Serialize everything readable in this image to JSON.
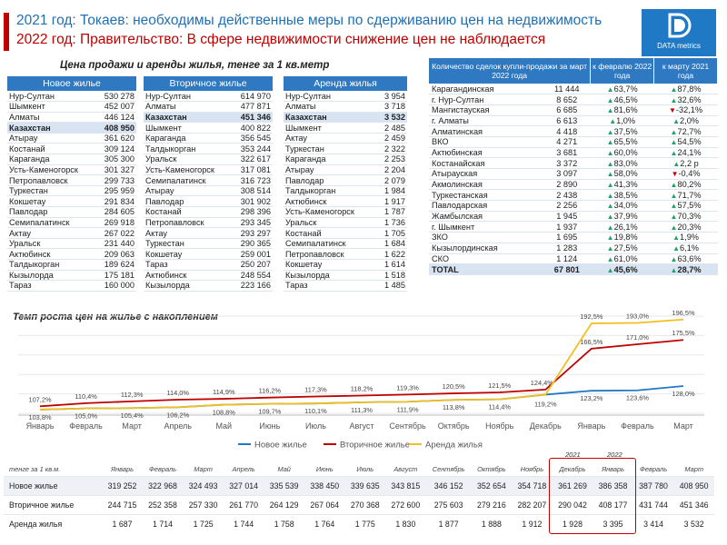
{
  "header": {
    "line1": "2021 год: Токаев: необходимы действенные меры по сдерживанию цен на недвижимость",
    "line2": "2022 год: Правительство: В сфере недвижимости снижение цен не наблюдается"
  },
  "logo": {
    "letter": "D",
    "text": "DATA metrics",
    "color": "#1f79c4"
  },
  "price_tables": {
    "title": "Цена продажи и аренды жилья,  тенге за 1 кв.метр",
    "new": {
      "header": "Новое жилье",
      "rows": [
        {
          "name": "Нур-Султан",
          "value": "530 278"
        },
        {
          "name": "Шымкент",
          "value": "452 007"
        },
        {
          "name": "Алматы",
          "value": "446 124"
        },
        {
          "name": "Казахстан",
          "value": "408 950",
          "highlight": true
        },
        {
          "name": "Атырау",
          "value": "361 620"
        },
        {
          "name": "Костанай",
          "value": "309 124"
        },
        {
          "name": "Караганда",
          "value": "305 300"
        },
        {
          "name": "Усть-Каменогорск",
          "value": "301 327"
        },
        {
          "name": "Петропавловск",
          "value": "299 733"
        },
        {
          "name": "Туркестан",
          "value": "295 959"
        },
        {
          "name": "Кокшетау",
          "value": "291 834"
        },
        {
          "name": "Павлодар",
          "value": "284 605"
        },
        {
          "name": "Семипалатинск",
          "value": "269 918"
        },
        {
          "name": "Актау",
          "value": "267 022"
        },
        {
          "name": "Уральск",
          "value": "231 440"
        },
        {
          "name": "Актюбинск",
          "value": "209 063"
        },
        {
          "name": "Талдыкорган",
          "value": "189 624"
        },
        {
          "name": "Кызылорда",
          "value": "175 181"
        },
        {
          "name": "Тараз",
          "value": "160 000"
        }
      ]
    },
    "secondary": {
      "header": "Вторичное жилье",
      "rows": [
        {
          "name": "Нур-Султан",
          "value": "614 970"
        },
        {
          "name": "Алматы",
          "value": "477 871"
        },
        {
          "name": "Казахстан",
          "value": "451 346",
          "highlight": true
        },
        {
          "name": "Шымкент",
          "value": "400 822"
        },
        {
          "name": "Караганда",
          "value": "356 545"
        },
        {
          "name": "Талдыкорган",
          "value": "353 244"
        },
        {
          "name": "Уральск",
          "value": "322 617"
        },
        {
          "name": "Усть-Каменогорск",
          "value": "317 081"
        },
        {
          "name": "Семипалатинск",
          "value": "316 723"
        },
        {
          "name": "Атырау",
          "value": "308 514"
        },
        {
          "name": "Павлодар",
          "value": "301 902"
        },
        {
          "name": "Костанай",
          "value": "298 396"
        },
        {
          "name": "Петропавловск",
          "value": "293 345"
        },
        {
          "name": "Актау",
          "value": "293 297"
        },
        {
          "name": "Туркестан",
          "value": "290 365"
        },
        {
          "name": "Кокшетау",
          "value": "259 001"
        },
        {
          "name": "Тараз",
          "value": "250 207"
        },
        {
          "name": "Актюбинск",
          "value": "248 554"
        },
        {
          "name": "Кызылорда",
          "value": "223 166"
        }
      ]
    },
    "rent": {
      "header": "Аренда  жилья",
      "rows": [
        {
          "name": "Нур-Султан",
          "value": "3 954"
        },
        {
          "name": "Алматы",
          "value": "3 718"
        },
        {
          "name": "Казахстан",
          "value": "3 532",
          "highlight": true
        },
        {
          "name": "Шымкент",
          "value": "2 485"
        },
        {
          "name": "Актау",
          "value": "2 459"
        },
        {
          "name": "Туркестан",
          "value": "2 322"
        },
        {
          "name": "Караганда",
          "value": "2 253"
        },
        {
          "name": "Атырау",
          "value": "2 204"
        },
        {
          "name": "Павлодар",
          "value": "2 079"
        },
        {
          "name": "Талдыкорган",
          "value": "1 984"
        },
        {
          "name": "Актюбинск",
          "value": "1 917"
        },
        {
          "name": "Усть-Каменогорск",
          "value": "1 787"
        },
        {
          "name": "Уральск",
          "value": "1 736"
        },
        {
          "name": "Костанай",
          "value": "1 705"
        },
        {
          "name": "Семипалатинск",
          "value": "1 684"
        },
        {
          "name": "Петропавловск",
          "value": "1 622"
        },
        {
          "name": "Кокшетау",
          "value": "1 614"
        },
        {
          "name": "Кызылорда",
          "value": "1 518"
        },
        {
          "name": "Тараз",
          "value": "1 485"
        }
      ]
    }
  },
  "deals_table": {
    "headers": [
      "Количество сделок купли-продажи  за март 2022 года",
      "к февралю 2022 года",
      "к марту 2021 года"
    ],
    "rows": [
      {
        "region": "Карагандинская",
        "count": "11 444",
        "feb": "63,7%",
        "feb_dir": "up",
        "mar": "87,8%",
        "mar_dir": "up"
      },
      {
        "region": "г. Нур-Султан",
        "count": "8 652",
        "feb": "46,5%",
        "feb_dir": "up",
        "mar": "32,6%",
        "mar_dir": "up"
      },
      {
        "region": "Мангистауская",
        "count": "6 685",
        "feb": "81,6%",
        "feb_dir": "up",
        "mar": "-32,1%",
        "mar_dir": "down"
      },
      {
        "region": "г. Алматы",
        "count": "6 613",
        "feb": "1,0%",
        "feb_dir": "up",
        "mar": "2,0%",
        "mar_dir": "up"
      },
      {
        "region": "Алматинская",
        "count": "4 418",
        "feb": "37,5%",
        "feb_dir": "up",
        "mar": "72,7%",
        "mar_dir": "up"
      },
      {
        "region": "ВКО",
        "count": "4 271",
        "feb": "65,5%",
        "feb_dir": "up",
        "mar": "54,5%",
        "mar_dir": "up"
      },
      {
        "region": "Актюбинская",
        "count": "3 681",
        "feb": "60,0%",
        "feb_dir": "up",
        "mar": "24,1%",
        "mar_dir": "up"
      },
      {
        "region": "Костанайская",
        "count": "3 372",
        "feb": "83,0%",
        "feb_dir": "up",
        "mar": "2,2 р",
        "mar_dir": "up"
      },
      {
        "region": "Атырауская",
        "count": "3 097",
        "feb": "58,0%",
        "feb_dir": "up",
        "mar": "-0,4%",
        "mar_dir": "down"
      },
      {
        "region": "Акмолинская",
        "count": "2 890",
        "feb": "41,3%",
        "feb_dir": "up",
        "mar": "80,2%",
        "mar_dir": "up"
      },
      {
        "region": "Туркестанская",
        "count": "2 438",
        "feb": "38,5%",
        "feb_dir": "up",
        "mar": "71,7%",
        "mar_dir": "up"
      },
      {
        "region": "Павлодарская",
        "count": "2 256",
        "feb": "34,0%",
        "feb_dir": "up",
        "mar": "57,5%",
        "mar_dir": "up"
      },
      {
        "region": "Жамбылская",
        "count": "1 945",
        "feb": "37,9%",
        "feb_dir": "up",
        "mar": "70,3%",
        "mar_dir": "up"
      },
      {
        "region": "г. Шымкент",
        "count": "1 937",
        "feb": "26,1%",
        "feb_dir": "up",
        "mar": "20,3%",
        "mar_dir": "up"
      },
      {
        "region": "ЗКО",
        "count": "1 695",
        "feb": "19,8%",
        "feb_dir": "up",
        "mar": "1,9%",
        "mar_dir": "up"
      },
      {
        "region": "Кызылординская",
        "count": "1 283",
        "feb": "27,5%",
        "feb_dir": "up",
        "mar": "6,1%",
        "mar_dir": "up"
      },
      {
        "region": "СКО",
        "count": "1 124",
        "feb": "61,0%",
        "feb_dir": "up",
        "mar": "63,6%",
        "mar_dir": "up"
      },
      {
        "region": "TOTAL",
        "count": "67 801",
        "feb": "45,6%",
        "feb_dir": "up",
        "mar": "28,7%",
        "mar_dir": "up",
        "total": true
      }
    ]
  },
  "chart_data": {
    "type": "line",
    "title": "Темп роста цен на жилье с накоплением",
    "categories": [
      "Январь",
      "Февраль",
      "Март",
      "Апрель",
      "Май",
      "Июнь",
      "Июль",
      "Август",
      "Сентябрь",
      "Октябрь",
      "Ноябрь",
      "Декабрь",
      "Январь",
      "Февраль",
      "Март"
    ],
    "series": [
      {
        "name": "Новое жилье",
        "color": "#1f79c4",
        "values": [
          103.8,
          105.0,
          105.4,
          106.2,
          108.8,
          109.7,
          110.1,
          111.3,
          111.9,
          113.8,
          114.4,
          119.2,
          123.2,
          123.6,
          128.0
        ],
        "labels": [
          "103,8%",
          "105,0%",
          "105,4%",
          "106,2%",
          "108,8%",
          "109,7%",
          "110,1%",
          "111,3%",
          "111,9%",
          "113,8%",
          "114,4%",
          "119,2%",
          "123,2%",
          "123,6%",
          "128,0%"
        ]
      },
      {
        "name": "Вторичное жилье",
        "color": "#c00000",
        "values": [
          107.2,
          110.4,
          112.3,
          114.0,
          114.9,
          116.2,
          117.3,
          118.2,
          119.3,
          120.5,
          121.5,
          124.4,
          166.5,
          171.0,
          175.5
        ],
        "labels": [
          "107,2%",
          "110,4%",
          "112,3%",
          "114,0%",
          "114,9%",
          "116,2%",
          "117,3%",
          "118,2%",
          "119,3%",
          "120,5%",
          "121,5%",
          "124,4%",
          "166,5%",
          "171,0%",
          "175,5%"
        ]
      },
      {
        "name": "Аренда жилья",
        "color": "#f2c01e",
        "values": [
          103.8,
          105.0,
          105.4,
          106.2,
          108.8,
          109.7,
          110.1,
          111.3,
          111.9,
          113.8,
          114.4,
          119.2,
          192.5,
          193.0,
          196.5
        ],
        "labels": [
          "",
          "",
          "",
          "",
          "",
          "",
          "",
          "",
          "",
          "",
          "",
          "",
          "192,5%",
          "193,0%",
          "196,5%"
        ]
      }
    ],
    "ylim": [
      100,
      200
    ],
    "grid": true,
    "legend": "bottom"
  },
  "bottom_table": {
    "unit_label": "тенге за 1 кв.м.",
    "months": [
      "Январь",
      "Февраль",
      "Март",
      "Апрель",
      "Май",
      "Июнь",
      "Июль",
      "Август",
      "Сентябрь",
      "Октябрь",
      "Ноябрь",
      "Декабрь",
      "Январь",
      "Февраль",
      "Март"
    ],
    "year_labels": [
      "2021",
      "2022"
    ],
    "rows": [
      {
        "name": "Новое жилье",
        "values": [
          "319 252",
          "322 968",
          "324 493",
          "327 014",
          "335 539",
          "338 450",
          "339 635",
          "343 815",
          "346 152",
          "352 654",
          "354 718",
          "361 269",
          "386 358",
          "387 780",
          "408 950"
        ]
      },
      {
        "name": "Вторичное жилье",
        "values": [
          "244 715",
          "252 358",
          "257 330",
          "261 770",
          "264 129",
          "267 064",
          "270 368",
          "272 600",
          "275 603",
          "279 216",
          "282 207",
          "290 042",
          "408 177",
          "431 744",
          "451 346"
        ]
      },
      {
        "name": "Аренда жилья",
        "values": [
          "1 687",
          "1 714",
          "1 725",
          "1 744",
          "1 758",
          "1 764",
          "1 775",
          "1 830",
          "1 877",
          "1 888",
          "1 912",
          "1 928",
          "3 395",
          "3 414",
          "3 532"
        ]
      }
    ]
  }
}
